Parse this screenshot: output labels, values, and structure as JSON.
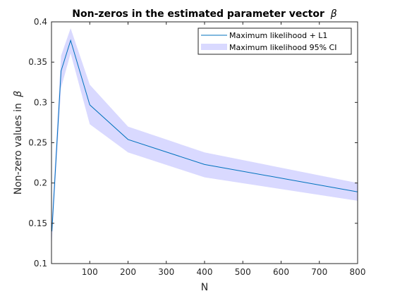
{
  "chart_data": {
    "type": "line",
    "title": "Non-zeros in the estimated parameter vector",
    "title_symbol": "β",
    "xlabel": "N",
    "ylabel": "Non-zero values in",
    "ylabel_symbol": "β",
    "xlim": [
      0,
      800
    ],
    "ylim": [
      0.1,
      0.4
    ],
    "xticks": [
      100,
      200,
      300,
      400,
      500,
      600,
      700,
      800
    ],
    "yticks": [
      0.1,
      0.15,
      0.2,
      0.25,
      0.3,
      0.35,
      0.4
    ],
    "grid": false,
    "legend_position": "top-right",
    "series": [
      {
        "name": "Maximum likelihood + L1",
        "kind": "line",
        "color": "#0072BD",
        "x": [
          1,
          25,
          50,
          100,
          200,
          400,
          800
        ],
        "y": [
          0.14,
          0.339,
          0.377,
          0.297,
          0.254,
          0.223,
          0.189
        ]
      },
      {
        "name": "Maximum likelihood 95% CI",
        "kind": "band",
        "color": "#d9d9ff",
        "x": [
          1,
          25,
          50,
          100,
          200,
          400,
          800
        ],
        "lower": [
          0.127,
          0.318,
          0.361,
          0.273,
          0.238,
          0.207,
          0.178
        ],
        "upper": [
          0.155,
          0.358,
          0.392,
          0.322,
          0.27,
          0.238,
          0.2
        ]
      }
    ]
  }
}
